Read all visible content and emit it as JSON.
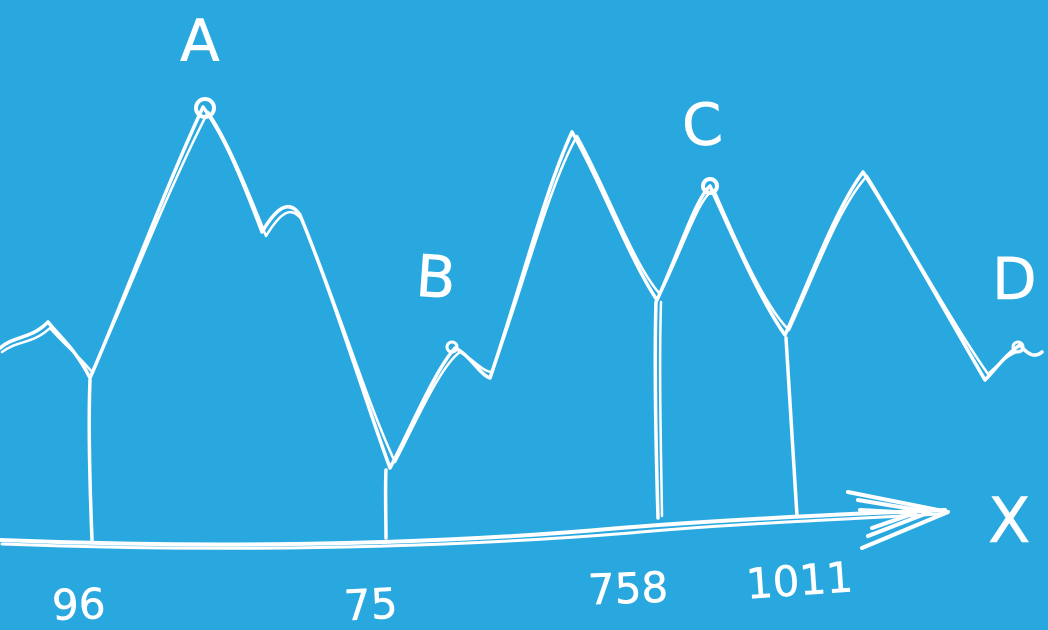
{
  "diagram": {
    "colors": {
      "background": "#29a8e0",
      "ink": "#ffffff"
    },
    "points": [
      {
        "id": "A",
        "label": "A"
      },
      {
        "id": "B",
        "label": "B"
      },
      {
        "id": "C",
        "label": "C"
      },
      {
        "id": "D",
        "label": "D"
      }
    ],
    "axis": {
      "label": "X",
      "ticks": [
        "96",
        "75",
        "758",
        "1011"
      ]
    }
  }
}
